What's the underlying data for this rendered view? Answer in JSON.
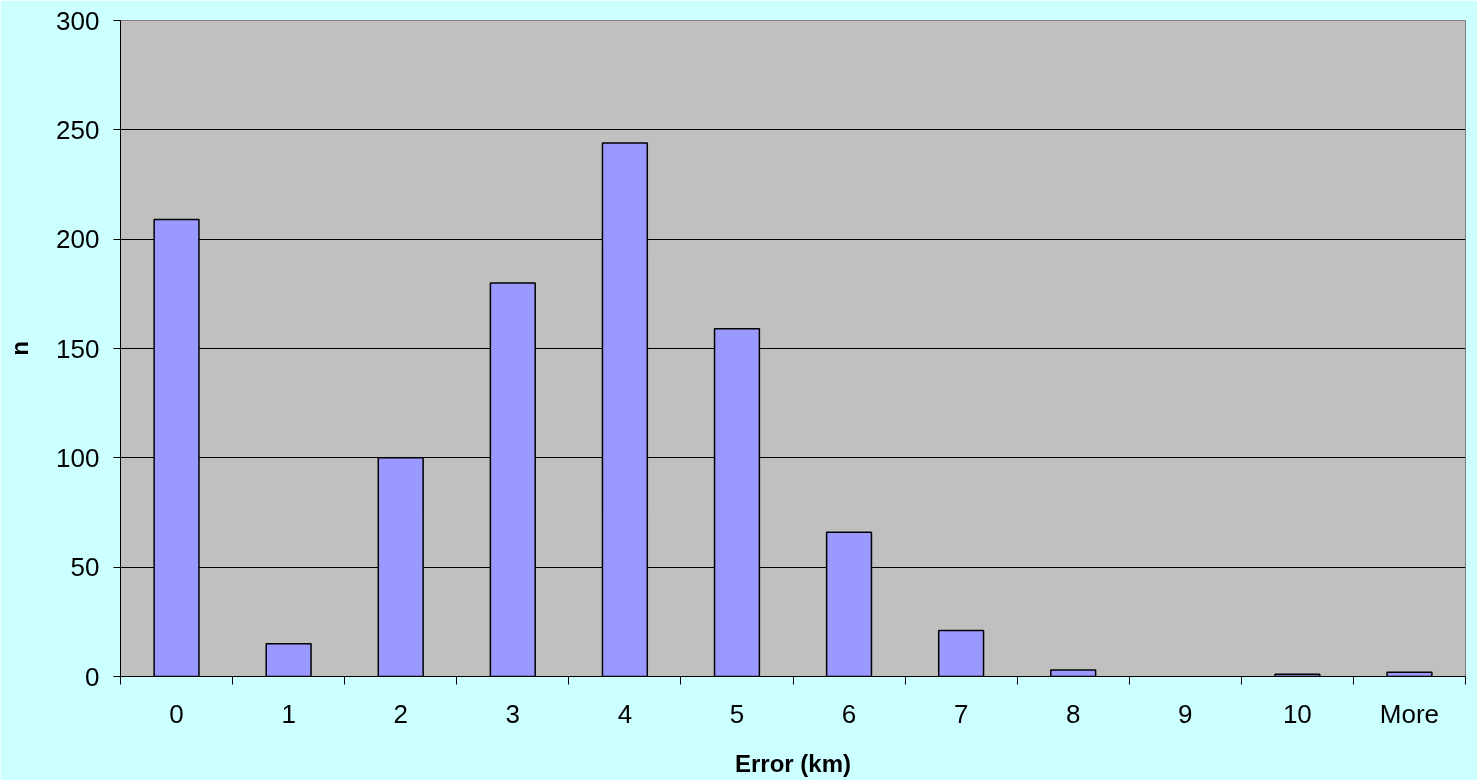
{
  "chart_data": {
    "type": "bar",
    "xlabel": "Error (km)",
    "ylabel": "n",
    "categories": [
      "0",
      "1",
      "2",
      "3",
      "4",
      "5",
      "6",
      "7",
      "8",
      "9",
      "10",
      "More"
    ],
    "values": [
      209,
      15,
      100,
      180,
      244,
      159,
      66,
      21,
      3,
      0,
      1,
      2
    ],
    "color": "#9999ff",
    "ylim": [
      0,
      300
    ],
    "yticks": [
      0,
      50,
      100,
      150,
      200,
      250,
      300
    ],
    "grid": "y"
  }
}
